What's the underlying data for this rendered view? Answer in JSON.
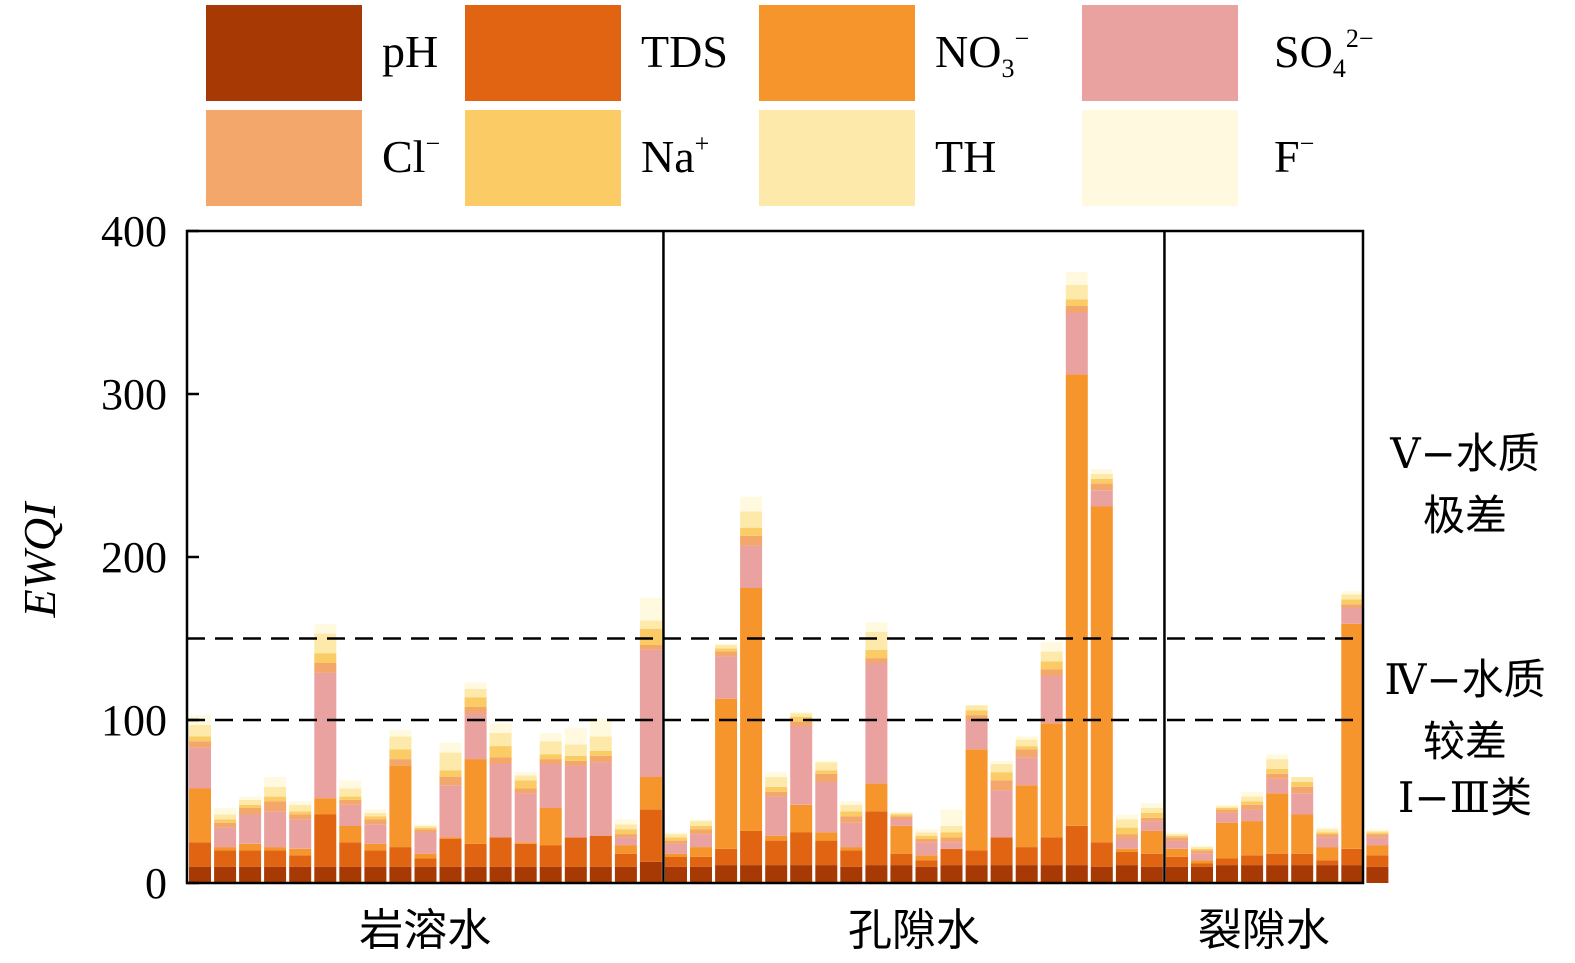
{
  "chart_data": {
    "type": "bar",
    "stacked": true,
    "ylabel": "EWQI",
    "ylim": [
      0,
      400
    ],
    "yticks": [
      0,
      100,
      200,
      300,
      400
    ],
    "grid": false,
    "legend_position": "top",
    "legend": [
      {
        "key": "pH",
        "base": "pH",
        "sup": "",
        "sub": "",
        "color": "#a73a04"
      },
      {
        "key": "TDS",
        "base": "TDS",
        "sup": "",
        "sub": "",
        "color": "#e06411"
      },
      {
        "key": "NO3",
        "base": "NO",
        "sub": "3",
        "sup": "−",
        "color": "#f6952b"
      },
      {
        "key": "SO4",
        "base": "SO",
        "sub": "4",
        "sup": "2−",
        "color": "#e9a29f"
      },
      {
        "key": "Cl",
        "base": "Cl",
        "sub": "",
        "sup": "−",
        "color": "#f3a76b"
      },
      {
        "key": "Na",
        "base": "Na",
        "sub": "",
        "sup": "+",
        "color": "#fbcc66"
      },
      {
        "key": "TH",
        "base": "TH",
        "sub": "",
        "sup": "",
        "color": "#fde9a9"
      },
      {
        "key": "F",
        "base": "F",
        "sub": "",
        "sup": "−",
        "color": "#fffadf"
      }
    ],
    "thresholds": [
      150,
      100
    ],
    "bands": [
      {
        "lines": [
          "Ⅴ−水质",
          "极差"
        ]
      },
      {
        "lines": [
          "Ⅳ−水质",
          "较差"
        ]
      },
      {
        "lines": [
          "Ⅰ−Ⅲ类"
        ]
      }
    ],
    "groups": [
      {
        "name": "岩溶水",
        "stacks": [
          [
            10,
            15,
            33,
            25,
            4,
            3,
            7,
            6
          ],
          [
            10,
            10,
            2,
            12,
            3,
            2,
            3,
            4
          ],
          [
            10,
            10,
            4,
            18,
            4,
            2,
            3,
            2
          ],
          [
            10,
            10,
            2,
            22,
            6,
            3,
            6,
            6
          ],
          [
            10,
            7,
            4,
            18,
            3,
            2,
            4,
            2
          ],
          [
            10,
            32,
            10,
            77,
            6,
            6,
            12,
            6
          ],
          [
            10,
            15,
            10,
            13,
            3,
            2,
            5,
            5
          ],
          [
            10,
            10,
            4,
            12,
            3,
            2,
            2,
            2
          ],
          [
            10,
            12,
            50,
            0,
            4,
            6,
            8,
            4
          ],
          [
            10,
            5,
            3,
            13,
            2,
            1,
            1,
            1
          ],
          [
            10,
            17,
            1,
            32,
            5,
            4,
            11,
            6
          ],
          [
            10,
            14,
            52,
            28,
            4,
            6,
            5,
            4
          ],
          [
            10,
            18,
            0,
            45,
            4,
            7,
            8,
            6
          ],
          [
            10,
            14,
            1,
            30,
            3,
            5,
            3,
            2
          ],
          [
            10,
            13,
            23,
            27,
            3,
            3,
            8,
            5
          ],
          [
            10,
            18,
            0,
            44,
            3,
            3,
            7,
            10
          ],
          [
            10,
            19,
            0,
            45,
            4,
            3,
            9,
            11
          ],
          [
            10,
            8,
            5,
            5,
            2,
            3,
            3,
            3
          ],
          [
            13,
            32,
            20,
            78,
            3,
            10,
            5,
            14
          ]
        ]
      },
      {
        "name": "孔隙水",
        "stacks": [
          [
            10,
            6,
            2,
            6,
            2,
            2,
            2,
            1
          ],
          [
            10,
            6,
            6,
            8,
            3,
            2,
            3,
            1
          ],
          [
            11,
            10,
            92,
            26,
            3,
            2,
            2,
            1
          ],
          [
            11,
            21,
            149,
            26,
            6,
            5,
            10,
            9
          ],
          [
            11,
            15,
            3,
            24,
            3,
            3,
            6,
            3
          ],
          [
            11,
            20,
            17,
            48,
            3,
            3,
            2,
            1
          ],
          [
            11,
            15,
            5,
            31,
            5,
            2,
            5,
            1
          ],
          [
            10,
            10,
            2,
            15,
            4,
            3,
            4,
            2
          ],
          [
            11,
            33,
            17,
            74,
            3,
            5,
            11,
            6
          ],
          [
            11,
            7,
            17,
            4,
            2,
            1,
            1,
            1
          ],
          [
            10,
            4,
            3,
            8,
            2,
            2,
            2,
            2
          ],
          [
            11,
            10,
            0,
            4,
            3,
            3,
            4,
            10
          ],
          [
            11,
            9,
            62,
            18,
            3,
            3,
            3,
            0
          ],
          [
            11,
            17,
            0,
            29,
            6,
            5,
            5,
            2
          ],
          [
            11,
            11,
            38,
            17,
            5,
            2,
            4,
            2
          ],
          [
            11,
            17,
            70,
            29,
            4,
            5,
            6,
            6
          ],
          [
            11,
            24,
            277,
            38,
            4,
            4,
            9,
            8
          ],
          [
            10,
            15,
            206,
            10,
            4,
            3,
            3,
            3
          ],
          [
            11,
            8,
            2,
            6,
            3,
            4,
            5,
            3
          ],
          [
            10,
            8,
            14,
            6,
            2,
            3,
            3,
            3
          ]
        ]
      },
      {
        "name": "裂隙水",
        "stacks": [
          [
            10,
            6,
            5,
            5,
            2,
            1,
            1,
            1
          ],
          [
            10,
            2,
            2,
            4,
            2,
            1,
            1,
            1
          ],
          [
            11,
            4,
            22,
            6,
            2,
            1,
            1,
            1
          ],
          [
            11,
            6,
            21,
            7,
            3,
            2,
            3,
            3
          ],
          [
            11,
            7,
            37,
            9,
            3,
            3,
            6,
            3
          ],
          [
            11,
            7,
            24,
            13,
            4,
            3,
            3,
            0
          ],
          [
            11,
            3,
            8,
            6,
            2,
            1,
            2,
            1
          ],
          [
            11,
            10,
            138,
            10,
            2,
            3,
            3,
            2
          ],
          [
            10,
            7,
            6,
            5,
            2,
            1,
            1,
            1
          ]
        ]
      }
    ]
  }
}
